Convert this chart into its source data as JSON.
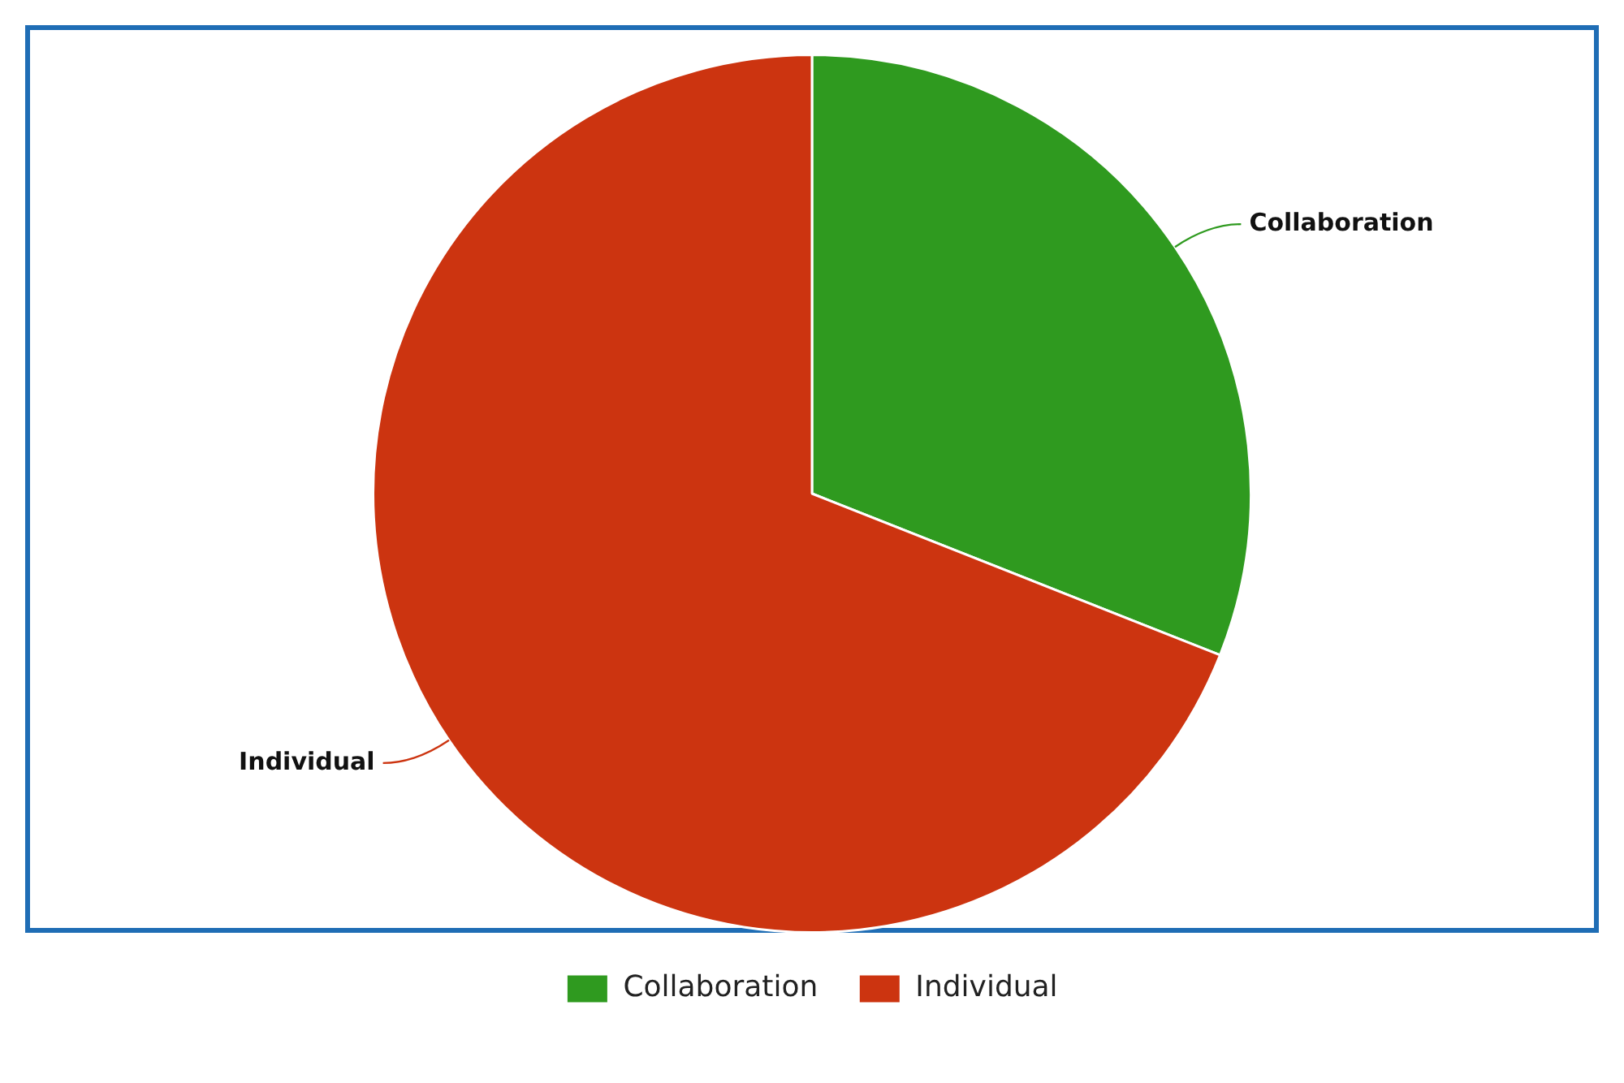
{
  "chart_data": {
    "type": "pie",
    "categories": [
      "Collaboration",
      "Individual"
    ],
    "values": [
      31,
      69
    ],
    "colors": [
      "#2f9a1f",
      "#cc3410"
    ],
    "legend": "bottom"
  }
}
